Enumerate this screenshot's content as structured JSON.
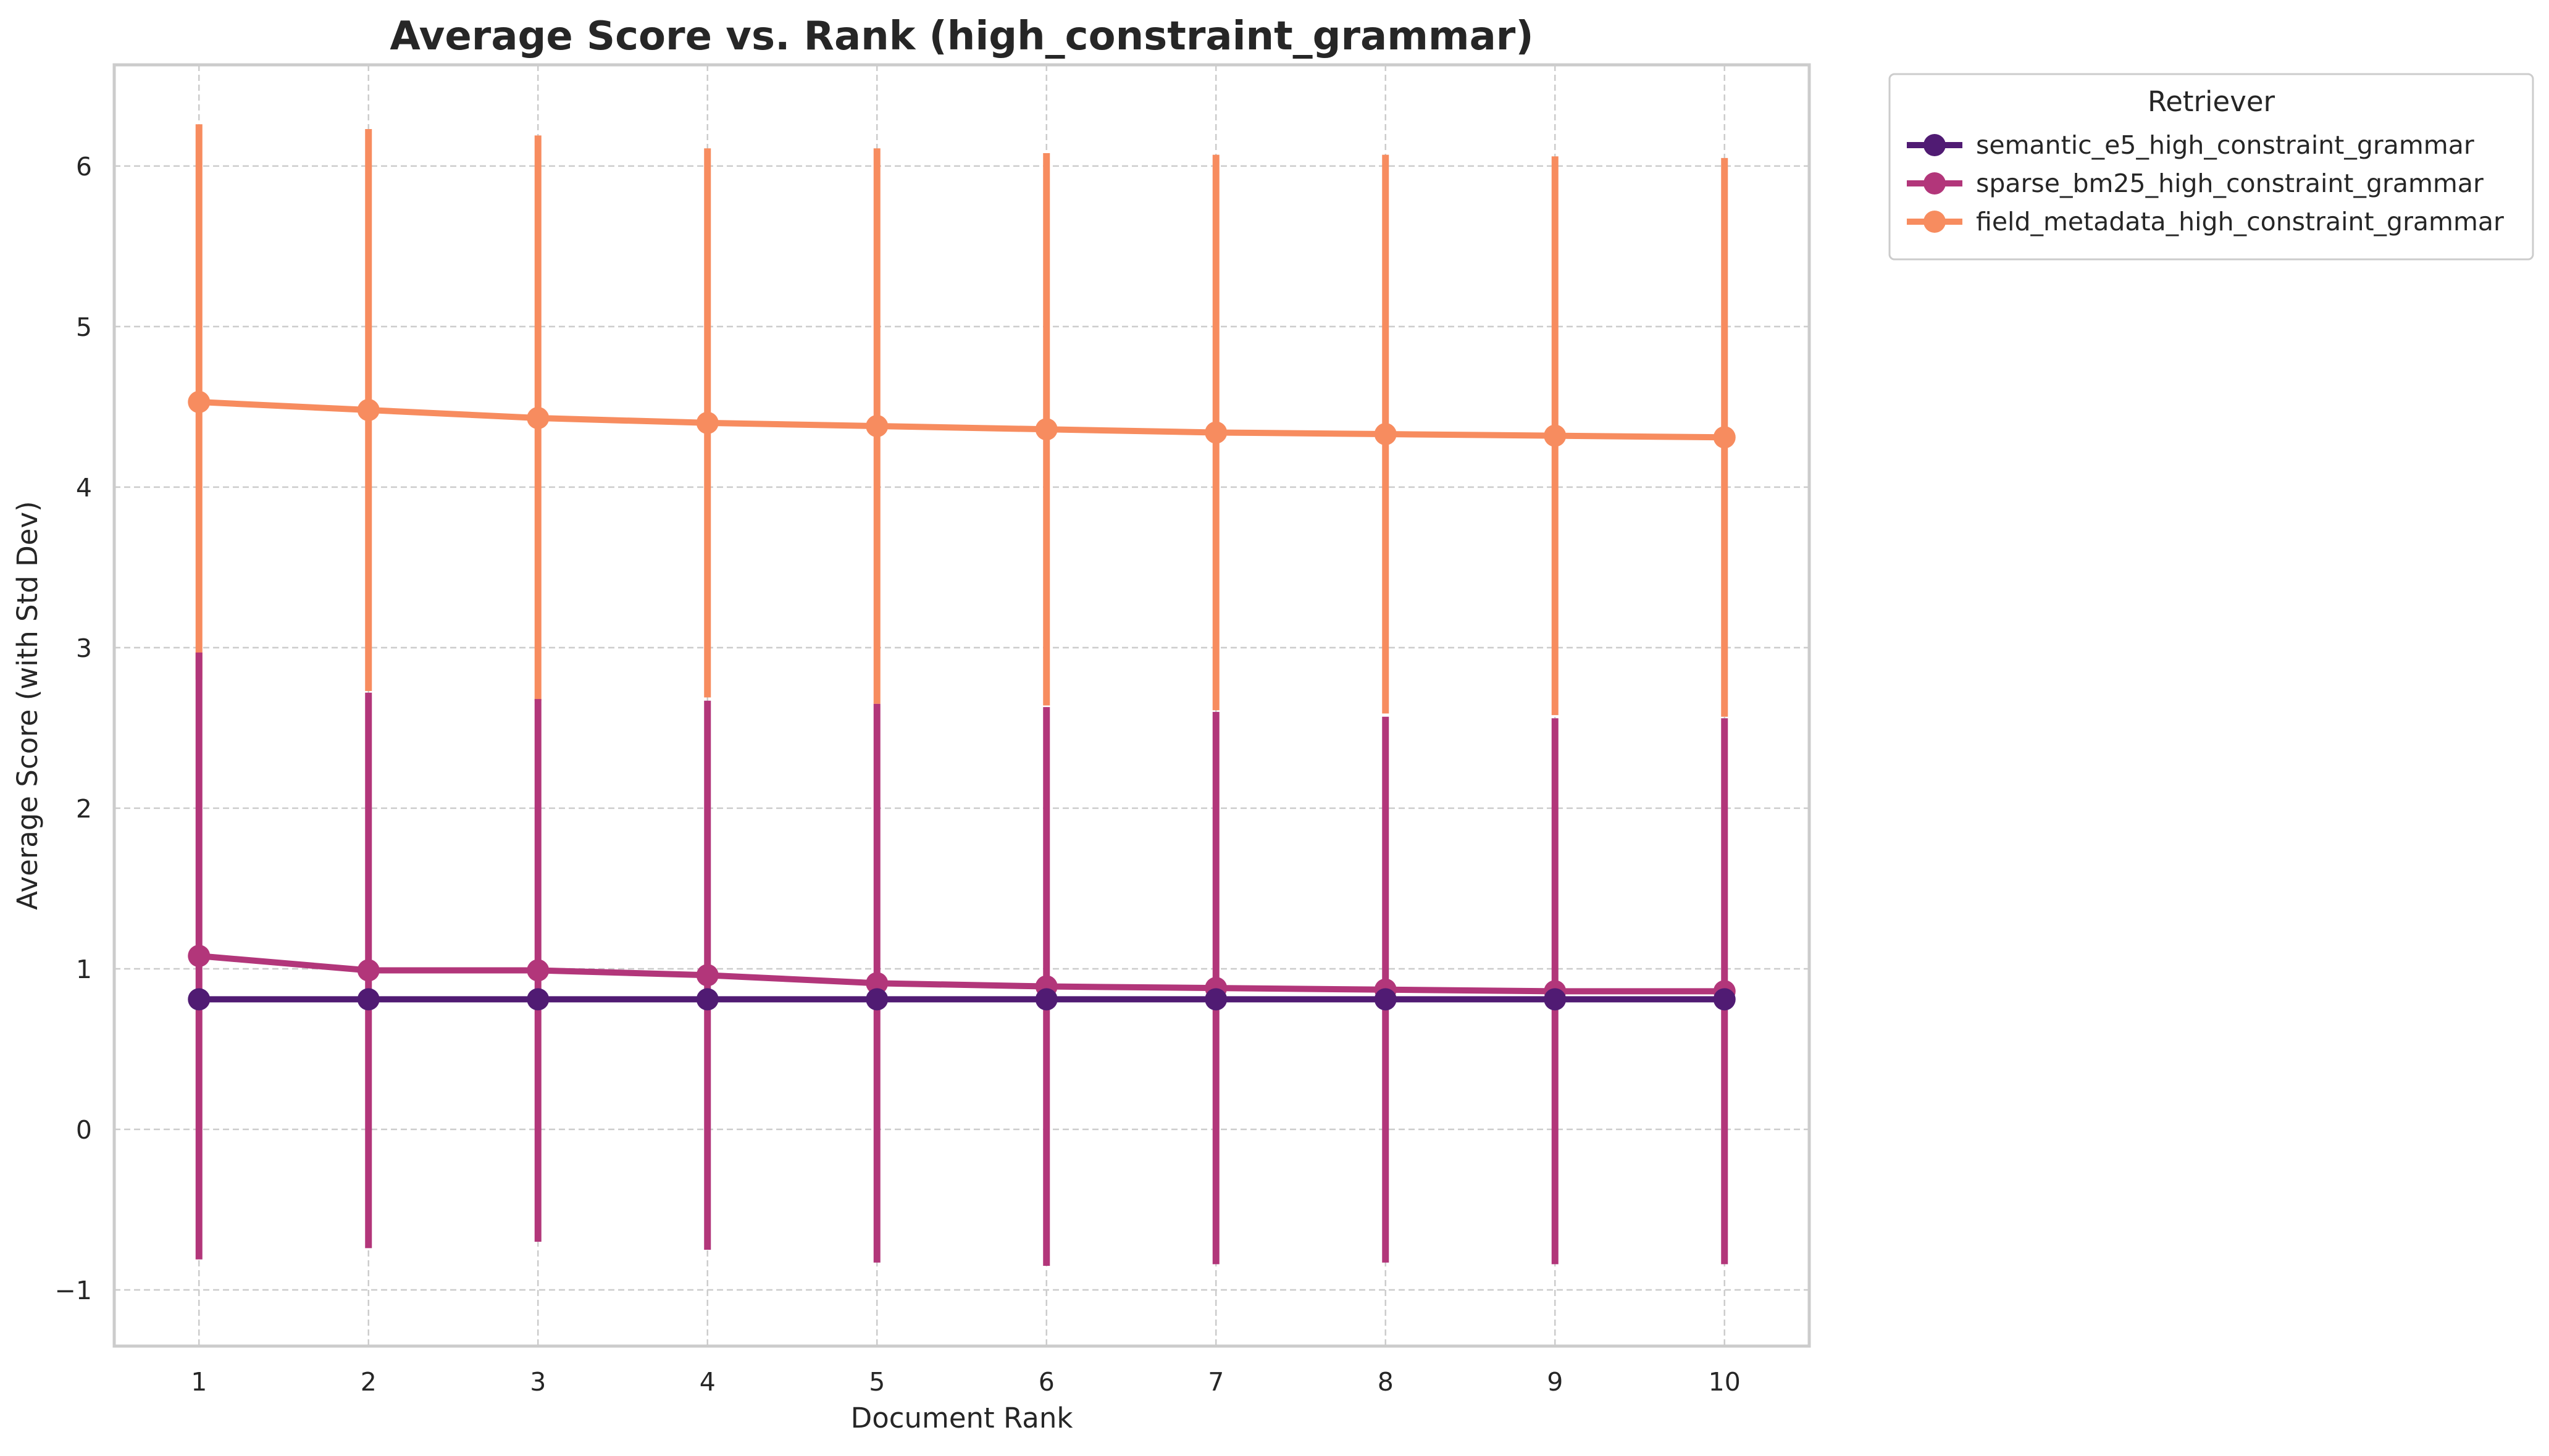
{
  "chart_data": {
    "type": "line",
    "title": "Average Score vs. Rank (high_constraint_grammar)",
    "xlabel": "Document Rank",
    "ylabel": "Average Score (with Std Dev)",
    "x": [
      1,
      2,
      3,
      4,
      5,
      6,
      7,
      8,
      9,
      10
    ],
    "xticks": [
      "1",
      "2",
      "3",
      "4",
      "5",
      "6",
      "7",
      "8",
      "9",
      "10"
    ],
    "yticks": [
      "−1",
      "0",
      "1",
      "2",
      "3",
      "4",
      "5",
      "6"
    ],
    "ytick_values": [
      -1,
      0,
      1,
      2,
      3,
      4,
      5,
      6
    ],
    "xlim": [
      0.5,
      10.5
    ],
    "ylim": [
      -1.35,
      6.63
    ],
    "grid": true,
    "grid_style": "dashed",
    "legend": {
      "title": "Retriever",
      "placement": "outside-top-right"
    },
    "series": [
      {
        "name": "semantic_e5_high_constraint_grammar",
        "color": "#501b73",
        "values": [
          0.81,
          0.81,
          0.81,
          0.81,
          0.81,
          0.81,
          0.81,
          0.81,
          0.81,
          0.81
        ],
        "std": [
          0,
          0,
          0,
          0,
          0,
          0,
          0,
          0,
          0,
          0
        ]
      },
      {
        "name": "sparse_bm25_high_constraint_grammar",
        "color": "#b2367a",
        "values": [
          1.08,
          0.99,
          0.99,
          0.96,
          0.91,
          0.89,
          0.88,
          0.87,
          0.86,
          0.86
        ],
        "std": [
          1.89,
          1.73,
          1.69,
          1.71,
          1.74,
          1.74,
          1.72,
          1.7,
          1.7,
          1.7
        ]
      },
      {
        "name": "field_metadata_high_constraint_grammar",
        "color": "#f78c5f",
        "values": [
          4.53,
          4.48,
          4.43,
          4.4,
          4.38,
          4.36,
          4.34,
          4.33,
          4.32,
          4.31
        ],
        "std": [
          1.73,
          1.75,
          1.76,
          1.71,
          1.73,
          1.72,
          1.73,
          1.74,
          1.74,
          1.74
        ]
      }
    ]
  }
}
